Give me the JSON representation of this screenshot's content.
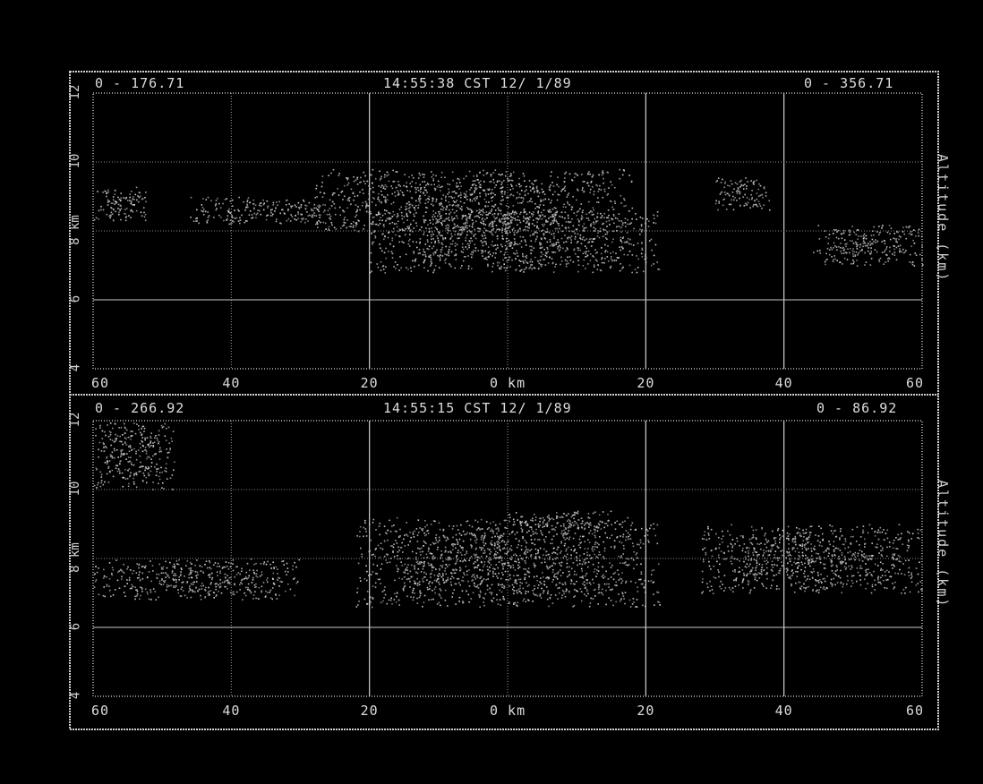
{
  "chart_data": [
    {
      "type": "heatmap",
      "header_left": "0 - 176.71",
      "header_center": "14:55:38 CST 12/ 1/89",
      "header_right": "0 - 356.71",
      "right_axis_label": "Altitude (km)",
      "y_ticks": [
        "4",
        "6",
        "8 km",
        "10",
        "12"
      ],
      "x_ticks": [
        "60",
        "40",
        "20",
        "0 km",
        "20",
        "40",
        "60"
      ],
      "ylim": [
        4,
        12
      ],
      "xlim": [
        -60,
        60
      ],
      "grid": true,
      "echo_regions": [
        {
          "x": [
            -60,
            -52
          ],
          "y": [
            8.3,
            9.3
          ]
        },
        {
          "x": [
            -46,
            -25
          ],
          "y": [
            8.2,
            9.0
          ]
        },
        {
          "x": [
            -28,
            18
          ],
          "y": [
            8.0,
            9.8
          ]
        },
        {
          "x": [
            -20,
            22
          ],
          "y": [
            6.8,
            8.6
          ]
        },
        {
          "x": [
            30,
            38
          ],
          "y": [
            8.6,
            9.6
          ]
        },
        {
          "x": [
            44,
            60
          ],
          "y": [
            7.0,
            8.2
          ]
        }
      ]
    },
    {
      "type": "heatmap",
      "header_left": "0 - 266.92",
      "header_center": "14:55:15 CST 12/ 1/89",
      "header_right": "0 - 86.92",
      "right_axis_label": "Altitude (km)",
      "y_ticks": [
        "4",
        "6",
        "8 km",
        "10",
        "12"
      ],
      "x_ticks": [
        "60",
        "40",
        "20",
        "0 km",
        "20",
        "40",
        "60"
      ],
      "ylim": [
        4,
        12
      ],
      "xlim": [
        -60,
        60
      ],
      "grid": true,
      "echo_regions": [
        {
          "x": [
            -60,
            -48
          ],
          "y": [
            10.0,
            12.0
          ]
        },
        {
          "x": [
            -60,
            -30
          ],
          "y": [
            6.8,
            8.0
          ]
        },
        {
          "x": [
            -22,
            22
          ],
          "y": [
            6.6,
            9.2
          ]
        },
        {
          "x": [
            0,
            15
          ],
          "y": [
            8.8,
            9.4
          ]
        },
        {
          "x": [
            28,
            60
          ],
          "y": [
            7.0,
            9.0
          ]
        }
      ]
    }
  ]
}
